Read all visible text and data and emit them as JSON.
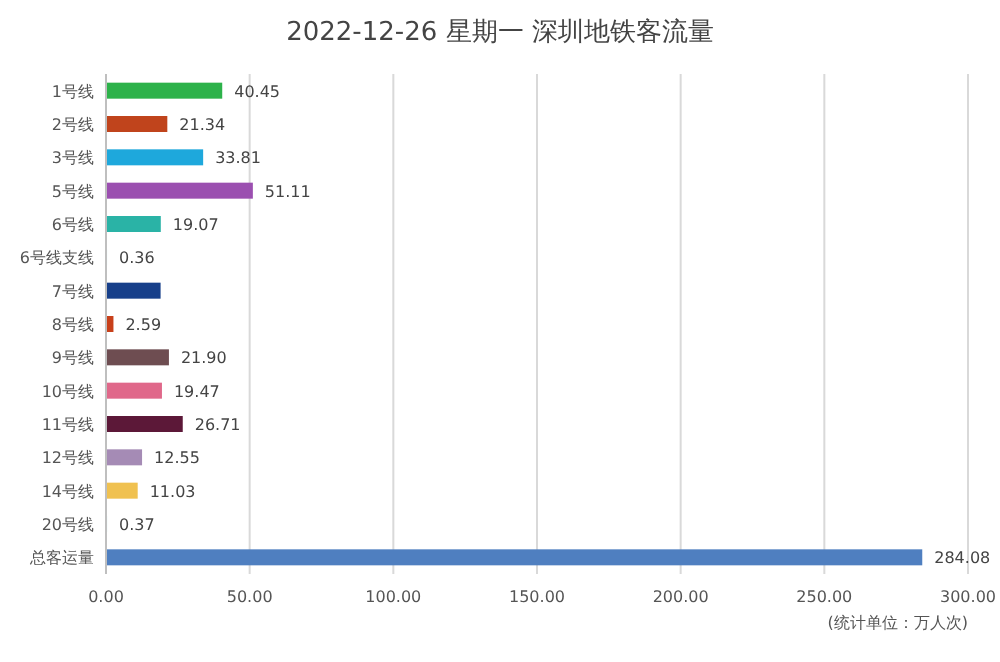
{
  "chart_data": {
    "type": "bar",
    "orientation": "horizontal",
    "title": "2022-12-26 星期一 深圳地铁客流量",
    "categories": [
      "1号线",
      "2号线",
      "3号线",
      "5号线",
      "6号线",
      "6号线支线",
      "7号线",
      "8号线",
      "9号线",
      "10号线",
      "11号线",
      "12号线",
      "14号线",
      "20号线",
      "总客运量"
    ],
    "values": [
      40.45,
      21.34,
      33.81,
      51.11,
      19.07,
      0.36,
      19,
      2.59,
      21.9,
      19.47,
      26.71,
      12.55,
      11.03,
      0.37,
      284.08
    ],
    "value_labels": [
      "40.45",
      "21.34",
      "33.81",
      "51.11",
      "19.07",
      "0.36",
      null,
      "2.59",
      "21.90",
      "19.47",
      "26.71",
      "12.55",
      "11.03",
      "0.37",
      "284.08"
    ],
    "colors": [
      "#2db24a",
      "#c0441c",
      "#1ea8dc",
      "#9b4fb0",
      "#2ab3a6",
      "#7fd0d8",
      "#173f8a",
      "#c8401a",
      "#6e4d51",
      "#e0688a",
      "#5c1838",
      "#a58bb5",
      "#f0c150",
      "#8fd8e0",
      "#4f7fc0"
    ],
    "xlim": [
      0,
      300
    ],
    "xticks": [
      {
        "value": 0,
        "label": "0.00"
      },
      {
        "value": 50,
        "label": "50.00"
      },
      {
        "value": 100,
        "label": "100.00"
      },
      {
        "value": 150,
        "label": "150.00"
      },
      {
        "value": 200,
        "label": "200.00"
      },
      {
        "value": 250,
        "label": "250.00"
      },
      {
        "value": 300,
        "label": "300.00"
      }
    ],
    "grid": "x",
    "annotations": [
      "(统计单位：万人次)"
    ]
  }
}
